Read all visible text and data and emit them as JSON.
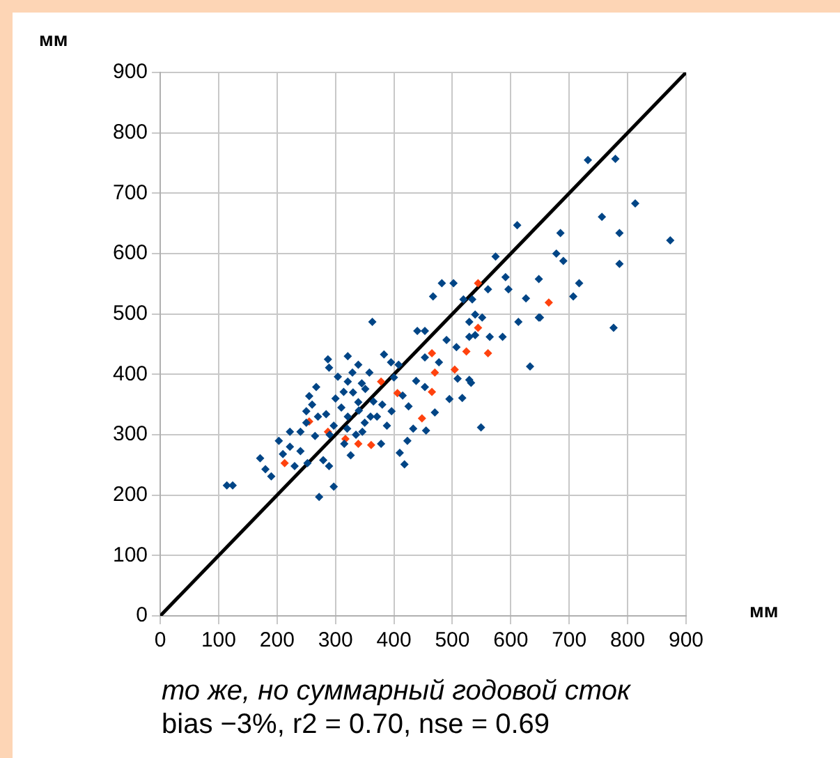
{
  "chart_data": {
    "type": "scatter",
    "xlabel": "мм",
    "ylabel": "мм",
    "xlim": [
      0,
      900
    ],
    "ylim": [
      0,
      900
    ],
    "xticks": [
      0,
      100,
      200,
      300,
      400,
      500,
      600,
      700,
      800,
      900
    ],
    "yticks": [
      0,
      100,
      200,
      300,
      400,
      500,
      600,
      700,
      800,
      900
    ],
    "grid": true,
    "legend": false,
    "annotations": [
      "то же, но суммарный годовой сток",
      "bias −3%, r2 = 0.70, nse = 0.69"
    ],
    "series": [
      {
        "marker": "diamond",
        "color": "#004586",
        "x": [
          732,
          779,
          813,
          756,
          786,
          873,
          611,
          685,
          678,
          690,
          786,
          574,
          591,
          596,
          648,
          717,
          707,
          626,
          482,
          502,
          467,
          519,
          534,
          561,
          776,
          648,
          613,
          633,
          539,
          551,
          529,
          586,
          564,
          490,
          440,
          453,
          507,
          539,
          529,
          509,
          453,
          477,
          650,
          549,
          532,
          517,
          495,
          470,
          455,
          433,
          423,
          410,
          418,
          529,
          408,
          453,
          438,
          425,
          396,
          378,
          363,
          287,
          289,
          321,
          267,
          255,
          250,
          171,
          180,
          190,
          114,
          124,
          272,
          297,
          203,
          222,
          240,
          252,
          230,
          279,
          289,
          321,
          339,
          351,
          358,
          371,
          388,
          314,
          304,
          329,
          265,
          240,
          346,
          297,
          284,
          321,
          339,
          383,
          326,
          222,
          210,
          340,
          360,
          310,
          300,
          330,
          350,
          380,
          290,
          270,
          320,
          345,
          365,
          400,
          415,
          260,
          250,
          315,
          335,
          395
        ],
        "values": [
          755,
          757,
          683,
          661,
          634,
          622,
          647,
          634,
          600,
          588,
          583,
          595,
          561,
          541,
          558,
          551,
          529,
          526,
          551,
          551,
          529,
          524,
          524,
          541,
          477,
          494,
          487,
          413,
          499,
          494,
          487,
          462,
          462,
          457,
          472,
          472,
          445,
          465,
          391,
          393,
          428,
          420,
          494,
          312,
          386,
          361,
          359,
          337,
          307,
          310,
          290,
          270,
          251,
          462,
          416,
          379,
          389,
          347,
          339,
          285,
          487,
          425,
          411,
          430,
          379,
          364,
          339,
          261,
          243,
          231,
          216,
          216,
          197,
          214,
          290,
          280,
          273,
          253,
          248,
          258,
          248,
          330,
          354,
          376,
          403,
          330,
          315,
          371,
          396,
          403,
          298,
          305,
          305,
          315,
          334,
          388,
          416,
          433,
          266,
          305,
          268,
          340,
          330,
          345,
          360,
          370,
          320,
          350,
          300,
          330,
          310,
          385,
          355,
          395,
          365,
          350,
          320,
          285,
          300,
          420
        ]
      },
      {
        "marker": "diamond",
        "color": "#ff420e",
        "x": [
          213,
          255,
          287,
          312,
          317,
          339,
          361,
          378,
          406,
          465,
          470,
          465,
          448,
          504,
          524,
          544,
          561,
          544,
          665
        ],
        "values": [
          253,
          322,
          305,
          null,
          293,
          285,
          283,
          388,
          369,
          435,
          403,
          371,
          327,
          408,
          438,
          477,
          435,
          551,
          519
        ]
      },
      {
        "type": "line",
        "marker": "none",
        "color": "#000000",
        "x": [
          0,
          900
        ],
        "values": [
          0,
          900
        ]
      }
    ]
  }
}
